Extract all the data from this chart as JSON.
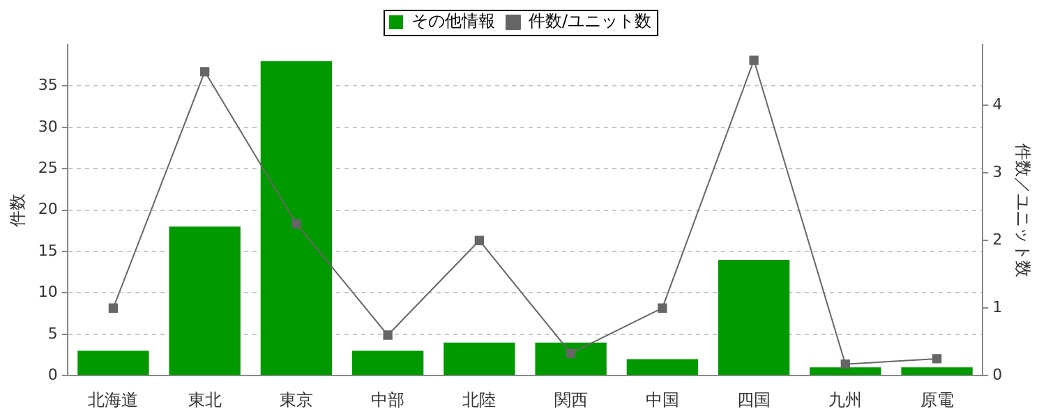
{
  "chart_data": {
    "type": "bar",
    "categories": [
      "北海道",
      "東北",
      "東京",
      "中部",
      "北陸",
      "関西",
      "中国",
      "四国",
      "九州",
      "原電"
    ],
    "ylabel": "件数",
    "y2label": "件数／ユニット数",
    "series": [
      {
        "name": "その他情報",
        "color": "#009900",
        "values": [
          3,
          18,
          38,
          3,
          4,
          4,
          2,
          14,
          1,
          1
        ]
      },
      {
        "name": "件数/ユニット数",
        "type": "line",
        "axis": "y2",
        "color": "#666666",
        "marker": "square",
        "values": [
          1,
          4.5,
          2.25,
          0.6,
          2,
          0.33,
          1,
          4.67,
          0.17,
          0.25
        ]
      }
    ],
    "ylim": [
      0,
      40
    ],
    "yticks": [
      0,
      5,
      10,
      15,
      20,
      25,
      30,
      35
    ],
    "y2lim": [
      0,
      4.9
    ],
    "y2ticks": [
      0,
      1,
      2,
      3,
      4
    ],
    "grid": "y",
    "legend": "top"
  }
}
